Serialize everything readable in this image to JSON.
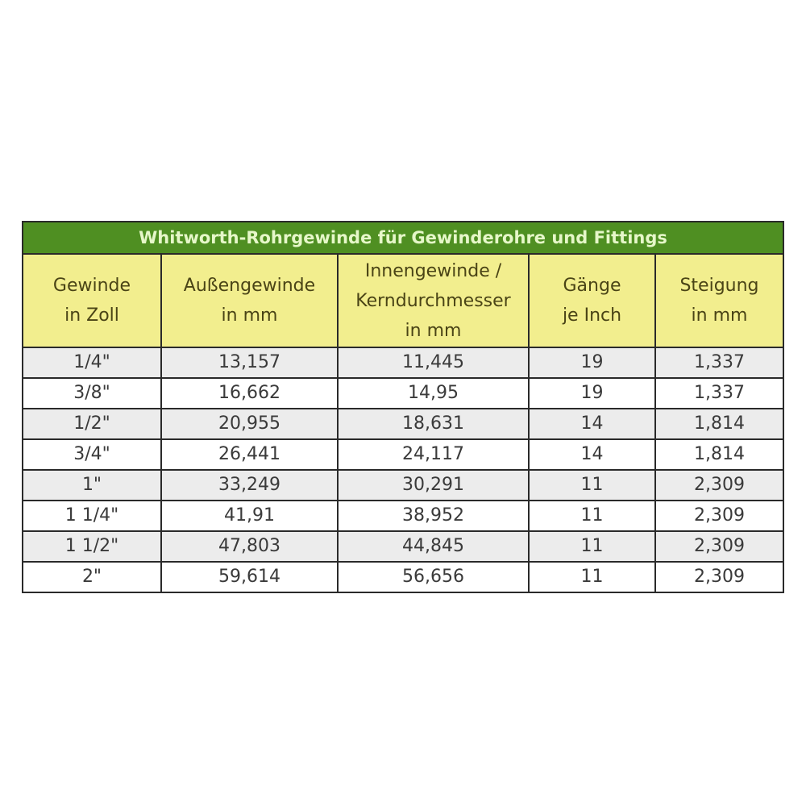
{
  "table": {
    "title": "Whitworth-Rohrgewinde für Gewinderohre und Fittings",
    "headers": [
      [
        "Gewinde",
        "in Zoll"
      ],
      [
        "Außengewinde",
        "in mm"
      ],
      [
        "Innengewinde /",
        "Kerndurchmesser",
        "in mm"
      ],
      [
        "Gänge",
        "je Inch"
      ],
      [
        "Steigung",
        "in mm"
      ]
    ],
    "rows": [
      [
        "1/4\"",
        "13,157",
        "11,445",
        "19",
        "1,337"
      ],
      [
        "3/8\"",
        "16,662",
        "14,95",
        "19",
        "1,337"
      ],
      [
        "1/2\"",
        "20,955",
        "18,631",
        "14",
        "1,814"
      ],
      [
        "3/4\"",
        "26,441",
        "24,117",
        "14",
        "1,814"
      ],
      [
        "1\"",
        "33,249",
        "30,291",
        "11",
        "2,309"
      ],
      [
        "1 1/4\"",
        "41,91",
        "38,952",
        "11",
        "2,309"
      ],
      [
        "1 1/2\"",
        "47,803",
        "44,845",
        "11",
        "2,309"
      ],
      [
        "2\"",
        "59,614",
        "56,656",
        "11",
        "2,309"
      ]
    ],
    "colors": {
      "title_bg": "#4f8f22",
      "title_text": "#e6f7c9",
      "header_bg": "#f2ee8e",
      "stripe": "#ececec"
    }
  }
}
